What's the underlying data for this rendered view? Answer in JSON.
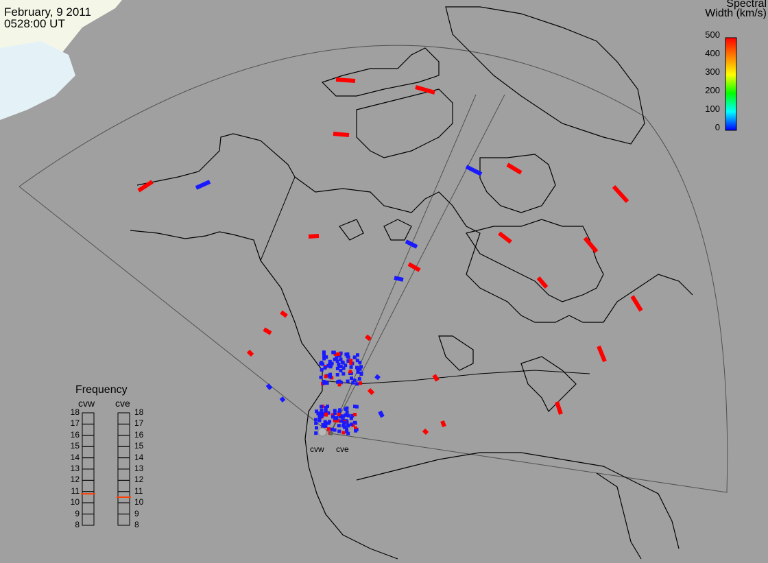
{
  "header": {
    "date": "February, 9 2011",
    "time": "0528:00 UT"
  },
  "colorbar": {
    "title_line1": "Spectral",
    "title_line2": "Width (km/s)",
    "ticks": [
      "500",
      "400",
      "300",
      "200",
      "100",
      "0"
    ],
    "colors": [
      "#ff0000",
      "#ff8000",
      "#ffff00",
      "#00ff00",
      "#00ffff",
      "#0000ff"
    ]
  },
  "frequency_panel": {
    "title": "Frequency",
    "radars": [
      "cvw",
      "cve"
    ],
    "scale": [
      "18",
      "17",
      "16",
      "15",
      "14",
      "13",
      "12",
      "11",
      "10",
      "9",
      "8"
    ],
    "markers": {
      "cvw": 10.8,
      "cve": 10.5
    },
    "marker_color": "#ff4000"
  },
  "sites": {
    "west": "cvw",
    "east": "cve"
  },
  "colors": {
    "ocean": "#a0a0a0",
    "coast": "#000000",
    "high_width": "#ff0000",
    "low_width": "#1a1aff"
  }
}
